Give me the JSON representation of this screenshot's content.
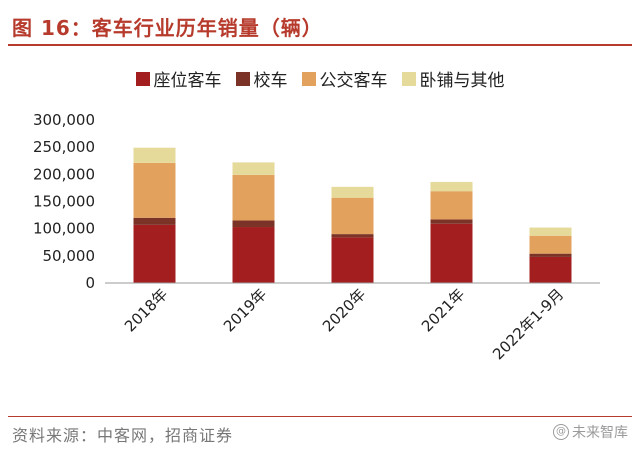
{
  "title": "图 16：客车行业历年销量（辆）",
  "source": "资料来源：中客网，招商证券",
  "watermark": {
    "icon": "@",
    "text": "未来智库"
  },
  "colors": {
    "title": "#b73b2c",
    "seat": "#a31f1f",
    "school": "#7b3328",
    "city": "#e2a15c",
    "sleeper": "#e6da9a"
  },
  "chart_data": {
    "type": "bar",
    "stacked": true,
    "categories": [
      "2018年",
      "2019年",
      "2020年",
      "2021年",
      "2022年1-9月"
    ],
    "series": [
      {
        "name": "座位客车",
        "values": [
          107000,
          103000,
          84000,
          109000,
          48000
        ]
      },
      {
        "name": "校车",
        "values": [
          13000,
          12000,
          6000,
          8000,
          6000
        ]
      },
      {
        "name": "公交客车",
        "values": [
          101000,
          84000,
          67000,
          52000,
          33000
        ]
      },
      {
        "name": "卧铺与其他",
        "values": [
          28000,
          23000,
          20000,
          17000,
          15000
        ]
      }
    ],
    "ylim": [
      0,
      300000
    ],
    "yticks": [
      0,
      50000,
      100000,
      150000,
      200000,
      250000,
      300000
    ],
    "ytick_labels": [
      "0",
      "50,000",
      "100,000",
      "150,000",
      "200,000",
      "250,000",
      "300,000"
    ],
    "legend_position": "top",
    "grid": false
  }
}
